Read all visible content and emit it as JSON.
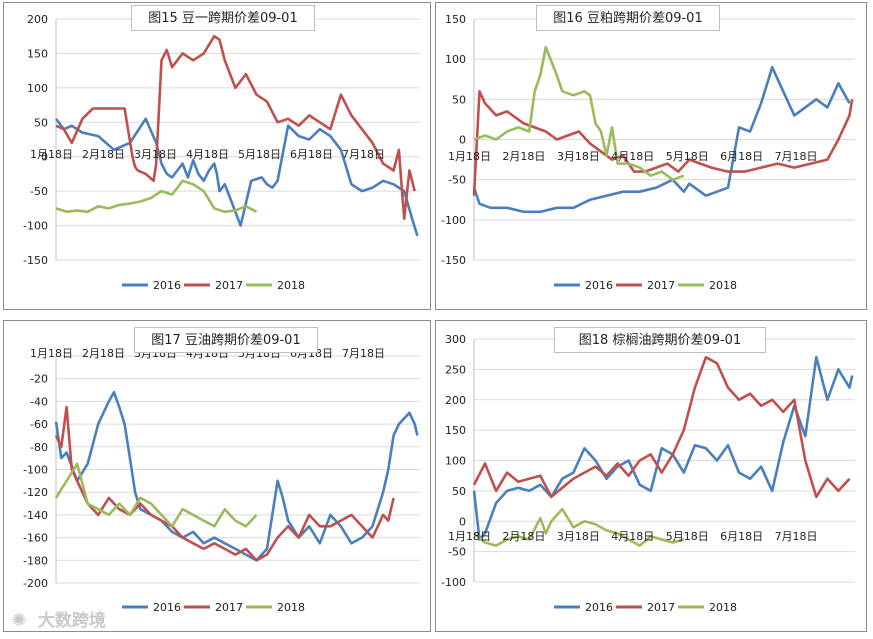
{
  "legend_labels": [
    "2016",
    "2017",
    "2018"
  ],
  "series_colors": {
    "2016": "#4a7fbf",
    "2017": "#c0504d",
    "2018": "#9bbb59"
  },
  "watermark": {
    "icon": "logo-icon",
    "text": "大数跨境"
  },
  "chart_data": [
    {
      "type": "line",
      "title": "图15 豆一跨期价差09-01",
      "ylim": [
        -150,
        200
      ],
      "yticks": [
        -150,
        -100,
        -50,
        0,
        50,
        100,
        150,
        200
      ],
      "x_categories": [
        "1月18日",
        "2月18日",
        "3月18日",
        "4月18日",
        "5月18日",
        "6月18日",
        "7月18日"
      ],
      "xrange": [
        0,
        6.9
      ],
      "series": [
        {
          "name": "2016",
          "x": [
            0,
            0.15,
            0.3,
            0.5,
            0.8,
            1.1,
            1.4,
            1.7,
            1.9,
            2.0,
            2.1,
            2.2,
            2.3,
            2.4,
            2.5,
            2.6,
            2.7,
            2.8,
            2.9,
            3.0,
            3.05,
            3.1,
            3.2,
            3.3,
            3.5,
            3.7,
            3.9,
            4.0,
            4.1,
            4.2,
            4.4,
            4.6,
            4.8,
            5.0,
            5.2,
            5.4,
            5.6,
            5.8,
            6.0,
            6.2,
            6.4,
            6.6,
            6.75,
            6.85
          ],
          "y": [
            55,
            40,
            45,
            35,
            30,
            10,
            20,
            55,
            20,
            -10,
            -25,
            -30,
            -20,
            -10,
            -30,
            -5,
            -25,
            -35,
            -20,
            -10,
            -25,
            -50,
            -40,
            -60,
            -100,
            -35,
            -30,
            -40,
            -45,
            -35,
            45,
            30,
            25,
            40,
            30,
            10,
            -40,
            -50,
            -45,
            -35,
            -40,
            -50,
            -90,
            -115
          ]
        },
        {
          "name": "2017",
          "x": [
            0,
            0.15,
            0.3,
            0.5,
            0.7,
            0.9,
            1.1,
            1.3,
            1.45,
            1.5,
            1.55,
            1.7,
            1.85,
            1.9,
            2.0,
            2.1,
            2.2,
            2.4,
            2.6,
            2.8,
            3.0,
            3.1,
            3.2,
            3.4,
            3.6,
            3.8,
            4.0,
            4.2,
            4.4,
            4.6,
            4.8,
            5.0,
            5.2,
            5.4,
            5.6,
            5.8,
            6.0,
            6.2,
            6.4,
            6.5,
            6.55,
            6.6,
            6.7,
            6.8
          ],
          "y": [
            45,
            40,
            20,
            55,
            70,
            70,
            70,
            70,
            0,
            -15,
            -20,
            -25,
            -35,
            -10,
            140,
            155,
            130,
            150,
            140,
            150,
            175,
            170,
            140,
            100,
            120,
            90,
            80,
            50,
            55,
            45,
            60,
            50,
            40,
            90,
            60,
            40,
            20,
            -10,
            -20,
            10,
            -40,
            -90,
            -20,
            -50
          ]
        },
        {
          "name": "2018",
          "x": [
            0,
            0.2,
            0.4,
            0.6,
            0.8,
            1.0,
            1.2,
            1.4,
            1.6,
            1.8,
            2.0,
            2.2,
            2.4,
            2.6,
            2.8,
            3.0,
            3.2,
            3.4,
            3.6,
            3.8
          ],
          "y": [
            -75,
            -80,
            -78,
            -80,
            -72,
            -75,
            -70,
            -68,
            -65,
            -60,
            -50,
            -55,
            -35,
            -40,
            -50,
            -75,
            -80,
            -78,
            -72,
            -80
          ]
        }
      ]
    },
    {
      "type": "line",
      "title": "图16 豆粕跨期价差09-01",
      "ylim": [
        -150,
        150
      ],
      "yticks": [
        -150,
        -100,
        -50,
        0,
        50,
        100,
        150
      ],
      "x_categories": [
        "1月18日",
        "2月18日",
        "3月18日",
        "4月18日",
        "5月18日",
        "6月18日",
        "7月18日"
      ],
      "xrange": [
        0,
        6.9
      ],
      "series": [
        {
          "name": "2016",
          "x": [
            0,
            0.1,
            0.3,
            0.6,
            0.9,
            1.2,
            1.5,
            1.8,
            2.1,
            2.4,
            2.7,
            3.0,
            3.3,
            3.6,
            3.8,
            3.9,
            4.0,
            4.2,
            4.4,
            4.6,
            4.8,
            5.0,
            5.2,
            5.4,
            5.6,
            5.8,
            6.0,
            6.2,
            6.4,
            6.6,
            6.8
          ],
          "y": [
            -60,
            -80,
            -85,
            -85,
            -90,
            -90,
            -85,
            -85,
            -75,
            -70,
            -65,
            -65,
            -60,
            -50,
            -65,
            -55,
            -60,
            -70,
            -65,
            -60,
            15,
            10,
            45,
            90,
            60,
            30,
            40,
            50,
            40,
            70,
            45
          ]
        },
        {
          "name": "2017",
          "x": [
            0,
            0.1,
            0.2,
            0.4,
            0.6,
            0.9,
            1.1,
            1.3,
            1.5,
            1.7,
            1.9,
            2.1,
            2.3,
            2.5,
            2.7,
            2.9,
            3.1,
            3.3,
            3.5,
            3.7,
            3.9,
            4.1,
            4.3,
            4.6,
            4.9,
            5.2,
            5.5,
            5.8,
            6.1,
            6.4,
            6.6,
            6.8,
            6.85
          ],
          "y": [
            -70,
            60,
            45,
            30,
            35,
            20,
            15,
            10,
            0,
            5,
            10,
            -5,
            -15,
            -25,
            -20,
            -40,
            -40,
            -35,
            -30,
            -40,
            -25,
            -30,
            -35,
            -40,
            -40,
            -35,
            -30,
            -35,
            -30,
            -25,
            0,
            30,
            50
          ]
        },
        {
          "name": "2018",
          "x": [
            0,
            0.2,
            0.4,
            0.6,
            0.8,
            1.0,
            1.1,
            1.2,
            1.3,
            1.5,
            1.6,
            1.8,
            2.0,
            2.1,
            2.2,
            2.3,
            2.4,
            2.5,
            2.6,
            2.8,
            3.0,
            3.2,
            3.4,
            3.6,
            3.8
          ],
          "y": [
            0,
            5,
            0,
            10,
            15,
            10,
            60,
            80,
            115,
            80,
            60,
            55,
            60,
            55,
            20,
            10,
            -20,
            15,
            -30,
            -30,
            -35,
            -45,
            -40,
            -50,
            -45
          ]
        }
      ]
    },
    {
      "type": "line",
      "title": "图17 豆油跨期价差09-01",
      "ylim": [
        -200,
        0
      ],
      "yticks": [
        -200,
        -180,
        -160,
        -140,
        -120,
        -100,
        -80,
        -60,
        -40,
        -20
      ],
      "x_categories": [
        "1月18日",
        "2月18日",
        "3月18日",
        "4月18日",
        "5月18日",
        "6月18日",
        "7月18日"
      ],
      "xrange": [
        0,
        6.9
      ],
      "series": [
        {
          "name": "2016",
          "x": [
            0,
            0.1,
            0.2,
            0.4,
            0.6,
            0.8,
            1.0,
            1.1,
            1.2,
            1.3,
            1.4,
            1.5,
            1.6,
            1.8,
            2.0,
            2.2,
            2.4,
            2.6,
            2.8,
            3.0,
            3.2,
            3.4,
            3.6,
            3.8,
            4.0,
            4.2,
            4.3,
            4.4,
            4.6,
            4.8,
            5.0,
            5.2,
            5.4,
            5.6,
            5.8,
            6.0,
            6.2,
            6.3,
            6.4,
            6.5,
            6.6,
            6.7,
            6.8,
            6.85
          ],
          "y": [
            -58,
            -90,
            -85,
            -110,
            -95,
            -60,
            -40,
            -32,
            -45,
            -60,
            -90,
            -120,
            -135,
            -140,
            -145,
            -155,
            -160,
            -155,
            -165,
            -160,
            -165,
            -170,
            -175,
            -180,
            -170,
            -110,
            -125,
            -145,
            -160,
            -150,
            -165,
            -140,
            -150,
            -165,
            -160,
            -150,
            -120,
            -100,
            -70,
            -60,
            -55,
            -50,
            -60,
            -70
          ]
        },
        {
          "name": "2017",
          "x": [
            0,
            0.1,
            0.2,
            0.3,
            0.4,
            0.6,
            0.8,
            1.0,
            1.2,
            1.4,
            1.6,
            1.8,
            2.0,
            2.2,
            2.4,
            2.6,
            2.8,
            3.0,
            3.2,
            3.4,
            3.6,
            3.8,
            4.0,
            4.2,
            4.4,
            4.6,
            4.8,
            5.0,
            5.2,
            5.4,
            5.6,
            5.8,
            6.0,
            6.2,
            6.3,
            6.4
          ],
          "y": [
            -70,
            -80,
            -45,
            -100,
            -110,
            -130,
            -140,
            -125,
            -135,
            -140,
            -130,
            -140,
            -145,
            -150,
            -160,
            -165,
            -170,
            -165,
            -170,
            -175,
            -170,
            -180,
            -175,
            -160,
            -150,
            -160,
            -140,
            -150,
            -150,
            -145,
            -140,
            -150,
            -160,
            -140,
            -145,
            -125
          ]
        },
        {
          "name": "2018",
          "x": [
            0,
            0.2,
            0.4,
            0.6,
            0.8,
            1.0,
            1.2,
            1.4,
            1.6,
            1.8,
            2.0,
            2.2,
            2.4,
            2.6,
            2.8,
            3.0,
            3.2,
            3.4,
            3.6,
            3.8
          ],
          "y": [
            -125,
            -110,
            -95,
            -130,
            -135,
            -140,
            -130,
            -140,
            -125,
            -130,
            -140,
            -150,
            -135,
            -140,
            -145,
            -150,
            -135,
            -145,
            -150,
            -140
          ]
        }
      ]
    },
    {
      "type": "line",
      "title": "图18 棕榈油跨期价差09-01",
      "ylim": [
        -100,
        300
      ],
      "yticks": [
        -100,
        -50,
        0,
        50,
        100,
        150,
        200,
        250,
        300
      ],
      "x_categories": [
        "1月18日",
        "2月18日",
        "3月18日",
        "4月18日",
        "5月18日",
        "6月18日",
        "7月18日"
      ],
      "xrange": [
        0,
        6.9
      ],
      "series": [
        {
          "name": "2016",
          "x": [
            0,
            0.1,
            0.2,
            0.4,
            0.6,
            0.8,
            1.0,
            1.2,
            1.4,
            1.6,
            1.8,
            2.0,
            2.2,
            2.4,
            2.6,
            2.8,
            3.0,
            3.2,
            3.4,
            3.6,
            3.8,
            4.0,
            4.2,
            4.4,
            4.6,
            4.8,
            5.0,
            5.2,
            5.4,
            5.6,
            5.8,
            6.0,
            6.2,
            6.4,
            6.6,
            6.8,
            6.85
          ],
          "y": [
            50,
            -30,
            -20,
            30,
            50,
            55,
            50,
            60,
            40,
            70,
            80,
            120,
            100,
            70,
            90,
            100,
            60,
            50,
            120,
            110,
            80,
            125,
            120,
            100,
            125,
            80,
            70,
            90,
            50,
            130,
            190,
            140,
            270,
            200,
            250,
            220,
            240
          ]
        },
        {
          "name": "2017",
          "x": [
            0,
            0.2,
            0.4,
            0.6,
            0.8,
            1.0,
            1.2,
            1.4,
            1.6,
            1.8,
            2.0,
            2.2,
            2.4,
            2.6,
            2.8,
            3.0,
            3.2,
            3.4,
            3.6,
            3.8,
            4.0,
            4.2,
            4.4,
            4.6,
            4.8,
            5.0,
            5.2,
            5.4,
            5.6,
            5.8,
            6.0,
            6.2,
            6.4,
            6.6,
            6.8
          ],
          "y": [
            60,
            95,
            50,
            80,
            65,
            70,
            75,
            40,
            55,
            70,
            80,
            90,
            75,
            95,
            75,
            100,
            110,
            80,
            110,
            150,
            220,
            270,
            260,
            220,
            200,
            210,
            190,
            200,
            180,
            200,
            100,
            40,
            70,
            50,
            70
          ]
        },
        {
          "name": "2018",
          "x": [
            0,
            0.2,
            0.4,
            0.6,
            0.8,
            1.0,
            1.2,
            1.3,
            1.4,
            1.6,
            1.8,
            2.0,
            2.2,
            2.4,
            2.6,
            2.8,
            3.0,
            3.2,
            3.4,
            3.6,
            3.8
          ],
          "y": [
            -20,
            -35,
            -40,
            -30,
            -25,
            -30,
            5,
            -20,
            0,
            20,
            -10,
            0,
            -5,
            -15,
            -20,
            -30,
            -40,
            -25,
            -30,
            -35,
            -30
          ]
        }
      ]
    }
  ]
}
